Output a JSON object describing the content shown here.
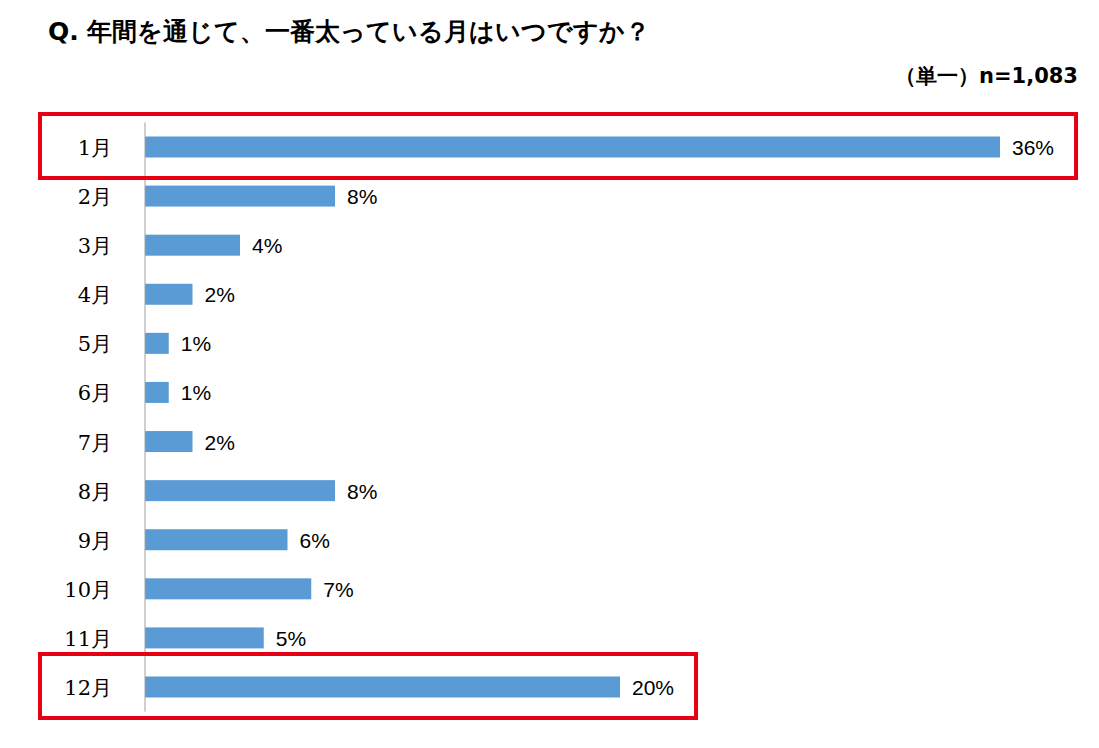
{
  "chart_data": {
    "type": "bar",
    "orientation": "horizontal",
    "title": "Q. 年間を通じて、一番太っている月はいつですか？",
    "subtitle": "（単一）n=1,083",
    "categories": [
      "1月",
      "2月",
      "3月",
      "4月",
      "5月",
      "6月",
      "7月",
      "8月",
      "9月",
      "10月",
      "11月",
      "12月"
    ],
    "values": [
      36,
      8,
      4,
      2,
      1,
      1,
      2,
      8,
      6,
      7,
      5,
      20
    ],
    "value_labels": [
      "36%",
      "8%",
      "4%",
      "2%",
      "1%",
      "1%",
      "2%",
      "8%",
      "6%",
      "7%",
      "5%",
      "20%"
    ],
    "color": "#5b9bd5",
    "ylim": [
      0,
      36
    ],
    "data_labels": true,
    "tick_labels": "x",
    "grid": false
  }
}
